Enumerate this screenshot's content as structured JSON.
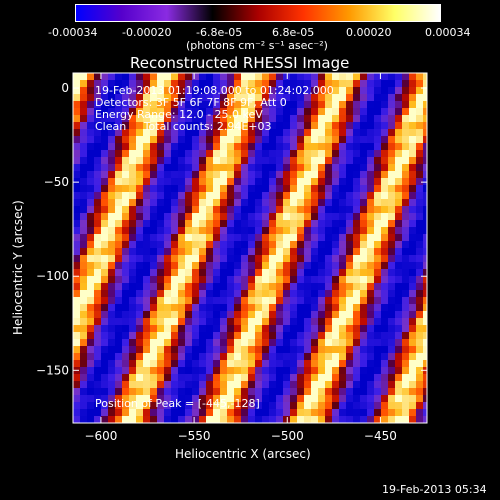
{
  "colorbar": {
    "tick_labels": [
      "-0.00034",
      "-0.00020",
      "-6.8e-05",
      "6.8e-05",
      "0.00020",
      "0.00034"
    ],
    "units": "(photons cm⁻² s⁻¹ asec⁻²)",
    "colors": [
      "#0000ff",
      "#5500cc",
      "#8a2be2",
      "#000000",
      "#aa0000",
      "#ff3300",
      "#ff9900",
      "#ffff66",
      "#ffffff"
    ]
  },
  "chart_data": {
    "type": "heatmap",
    "title": "Reconstructed RHESSI Image",
    "xlabel": "Heliocentric X (arcsec)",
    "ylabel": "Heliocentric Y (arcsec)",
    "xlim": [
      -615,
      -425
    ],
    "ylim": [
      -178,
      8
    ],
    "x_ticks": [
      -600,
      -550,
      -500,
      -450
    ],
    "y_ticks": [
      0,
      -50,
      -100,
      -150
    ],
    "annotation_lines": [
      "19-Feb-2013 01:19:08.000 to 01:24:02.000",
      "Detectors: 3F 5F 6F 7F 8F 9F, Att 0",
      "Energy Range: 12.0 - 25.0 keV",
      "Clean     Total counts: 2.94E+03"
    ],
    "peak_label": "Position of Peak = [-445,-128]",
    "peak": [
      -445,
      -128
    ],
    "pattern": "diagonal stripes alternating positive (yellow/red) and negative (blue/purple)"
  },
  "footer": {
    "timestamp": "19-Feb-2013 05:34"
  }
}
